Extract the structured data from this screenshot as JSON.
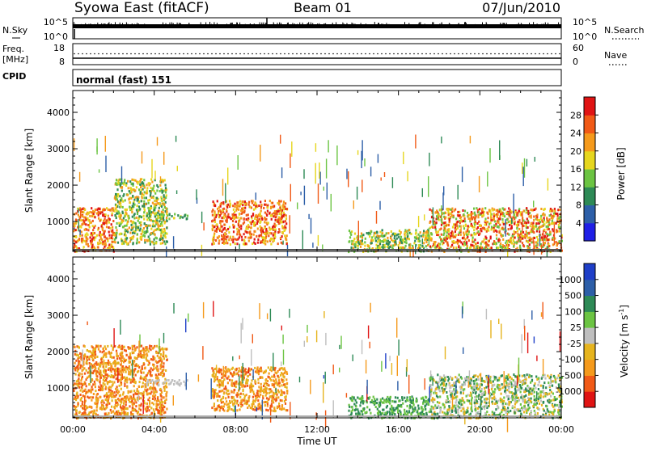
{
  "header": {
    "station": "Syowa East (fitACF)",
    "beam": "Beam 01",
    "date": "07/Jun/2010"
  },
  "noise_panel": {
    "left_label": "N.Sky",
    "right_label": "N.Search",
    "left_ticks": [
      "10^5",
      "10^0"
    ],
    "right_ticks": [
      "10^5",
      "10^0"
    ]
  },
  "freq_panel": {
    "left_label_line1": "Freq.",
    "left_label_line2": "[MHz]",
    "right_label": "Nave",
    "left_ticks": [
      "18",
      "8"
    ],
    "right_ticks": [
      "60",
      "0"
    ]
  },
  "cpid": {
    "label": "CPID",
    "value": "normal (fast) 151"
  },
  "colors": {
    "power_scale": [
      "#1f1fe6",
      "#2d5fa8",
      "#2e8a56",
      "#6cc443",
      "#e6d61e",
      "#f59a1c",
      "#f15a17",
      "#e01414"
    ],
    "velocity_scale": [
      "#e01414",
      "#f15a17",
      "#f59a1c",
      "#e6b41e",
      "#bfbfbf",
      "#6cc443",
      "#2e8a56",
      "#2d5fa8",
      "#1f3fc8"
    ]
  },
  "chart_data": [
    {
      "type": "heatmap",
      "quantity": "Power",
      "ylabel": "Slant Range [km]",
      "yticks": [
        1000,
        2000,
        3000,
        4000
      ],
      "ylim": [
        180,
        4600
      ],
      "xlim_hours": [
        0,
        24
      ],
      "colorbar": {
        "label": "Power [dB]",
        "ticks": [
          "4",
          "8",
          "12",
          "16",
          "20",
          "24",
          "28"
        ]
      },
      "regions": [
        {
          "start_h": 0.0,
          "end_h": 2.0,
          "range_km": [
            200,
            1400
          ],
          "level": "16-28"
        },
        {
          "start_h": 2.0,
          "end_h": 4.6,
          "range_km": [
            400,
            2200
          ],
          "level": "8-20"
        },
        {
          "start_h": 3.6,
          "end_h": 5.6,
          "range_km": [
            1100,
            1250
          ],
          "level": "8-16"
        },
        {
          "start_h": 6.8,
          "end_h": 10.5,
          "range_km": [
            400,
            1600
          ],
          "level": "16-28"
        },
        {
          "start_h": 13.5,
          "end_h": 17.5,
          "range_km": [
            200,
            800
          ],
          "level": "8-20"
        },
        {
          "start_h": 17.5,
          "end_h": 24.0,
          "range_km": [
            200,
            1400
          ],
          "level": "12-28"
        }
      ]
    },
    {
      "type": "heatmap",
      "quantity": "Velocity",
      "ylabel": "Slant Range [km]",
      "xlabel": "Time UT",
      "yticks": [
        1000,
        2000,
        3000,
        4000
      ],
      "ylim": [
        180,
        4600
      ],
      "xticks": [
        "00:00",
        "04:00",
        "08:00",
        "12:00",
        "16:00",
        "20:00",
        "00:00"
      ],
      "colorbar": {
        "label": "Velocity [m s^-1]",
        "ticks": [
          "1000",
          "500",
          "100",
          "25",
          "-25",
          "-100",
          "-500",
          "-1000"
        ]
      },
      "regions": [
        {
          "start_h": 0.0,
          "end_h": 4.6,
          "range_km": [
            200,
            2200
          ],
          "level": "-500 to -100"
        },
        {
          "start_h": 3.6,
          "end_h": 5.6,
          "range_km": [
            1100,
            1250
          ],
          "level": "-25 to 25"
        },
        {
          "start_h": 6.8,
          "end_h": 10.5,
          "range_km": [
            400,
            1600
          ],
          "level": "-500 to -100"
        },
        {
          "start_h": 13.5,
          "end_h": 17.5,
          "range_km": [
            200,
            800
          ],
          "level": "25 to 100"
        },
        {
          "start_h": 17.5,
          "end_h": 24.0,
          "range_km": [
            200,
            1400
          ],
          "level": "-25 to 100"
        }
      ]
    }
  ]
}
